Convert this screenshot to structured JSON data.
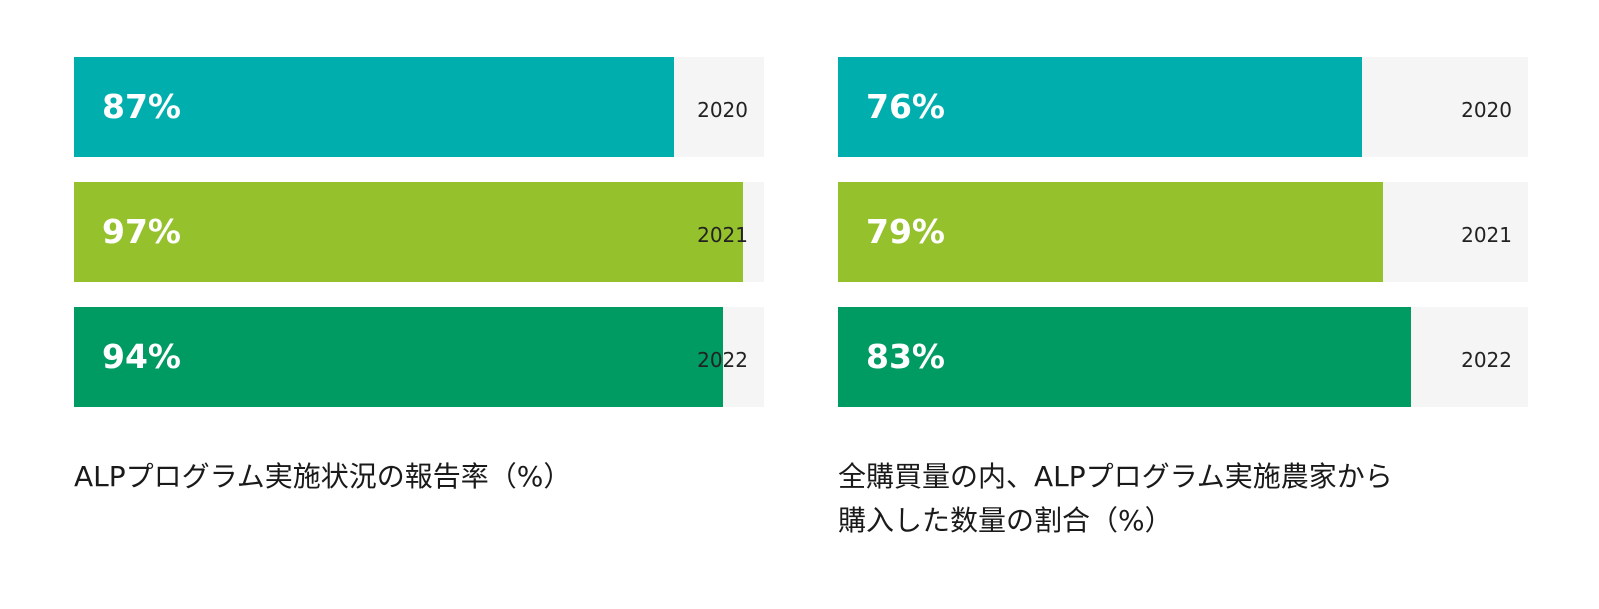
{
  "chart_data": [
    {
      "type": "bar",
      "orientation": "horizontal",
      "title": "ALPプログラム実施状況の報告率（%）",
      "categories": [
        "2020",
        "2021",
        "2022"
      ],
      "values": [
        87,
        97,
        94
      ],
      "value_labels": [
        "87%",
        "97%",
        "94%"
      ],
      "xlim": [
        0,
        100
      ],
      "colors": [
        "#00aeae",
        "#95c12c",
        "#009a63"
      ],
      "track_color": "#f5f5f5"
    },
    {
      "type": "bar",
      "orientation": "horizontal",
      "title_lines": [
        "全購買量の内、ALPプログラム実施農家から",
        "購入した数量の割合（%）"
      ],
      "categories": [
        "2020",
        "2021",
        "2022"
      ],
      "values": [
        76,
        79,
        83
      ],
      "value_labels": [
        "76%",
        "79%",
        "83%"
      ],
      "xlim": [
        0,
        100
      ],
      "colors": [
        "#00aeae",
        "#95c12c",
        "#009a63"
      ],
      "track_color": "#f5f5f5"
    }
  ]
}
